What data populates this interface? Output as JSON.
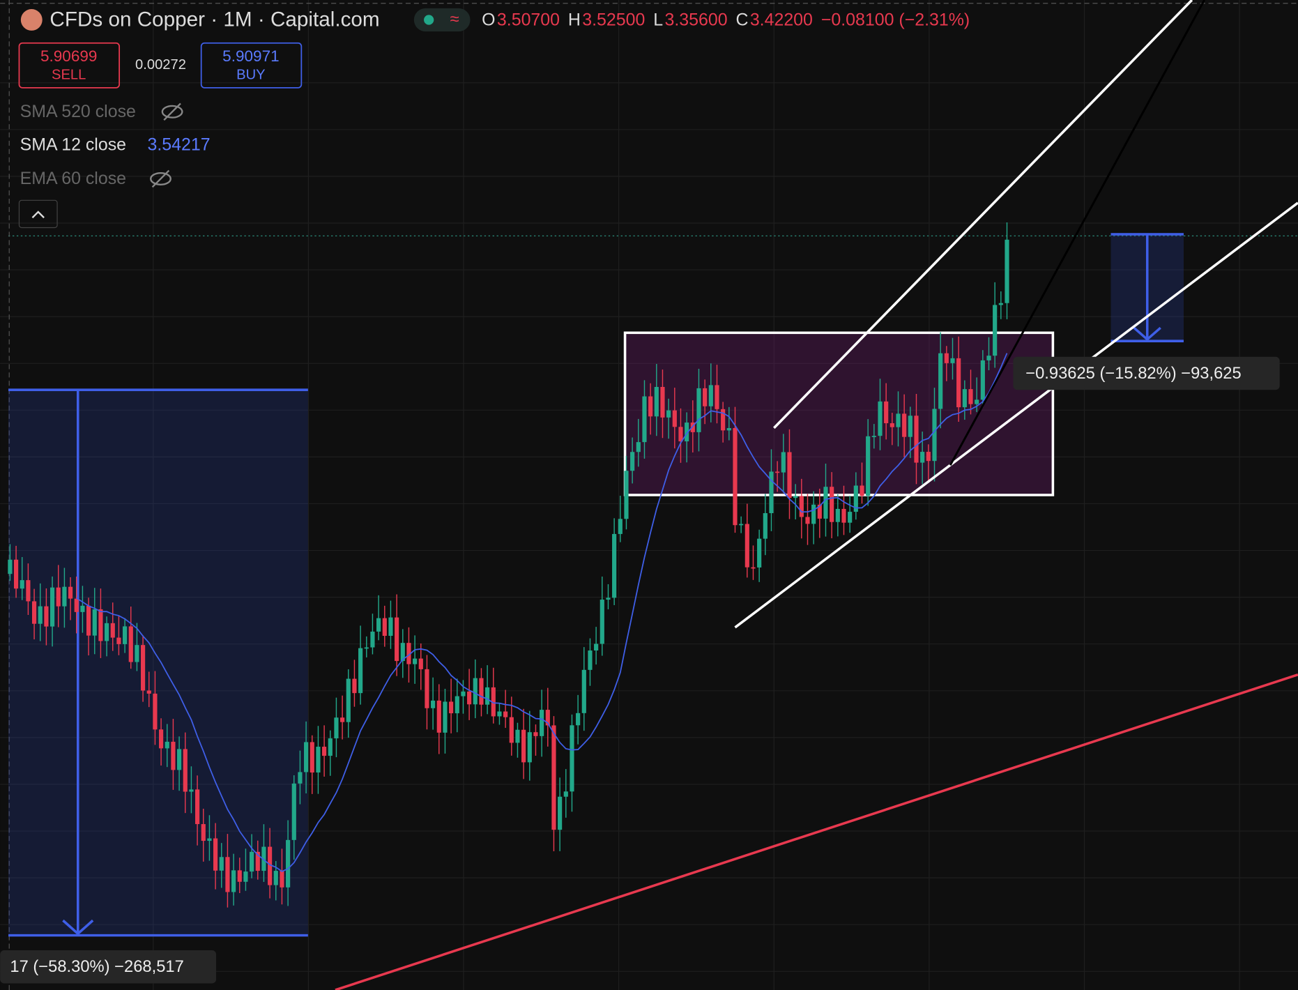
{
  "header": {
    "title": "CFDs on Copper · 1M · Capital.com",
    "ohlc": [
      {
        "key": "O",
        "value": "3.50700"
      },
      {
        "key": "H",
        "value": "3.52500"
      },
      {
        "key": "L",
        "value": "3.35600"
      },
      {
        "key": "C",
        "value": "3.42200"
      }
    ],
    "change": "−0.08100 (−2.31%)"
  },
  "trade": {
    "sell": {
      "price": "5.90699",
      "label": "SELL"
    },
    "spread": "0.00272",
    "buy": {
      "price": "5.90971",
      "label": "BUY"
    }
  },
  "indicators": [
    {
      "name": "SMA 520 close"
    },
    {
      "name": "SMA 12 close",
      "value": "3.54217"
    },
    {
      "name": "EMA 60 close"
    }
  ],
  "measurements": [
    {
      "label": "−0.93625 (−15.82%) −93,625"
    },
    {
      "label": "17 (−58.30%) −268,517"
    }
  ]
}
